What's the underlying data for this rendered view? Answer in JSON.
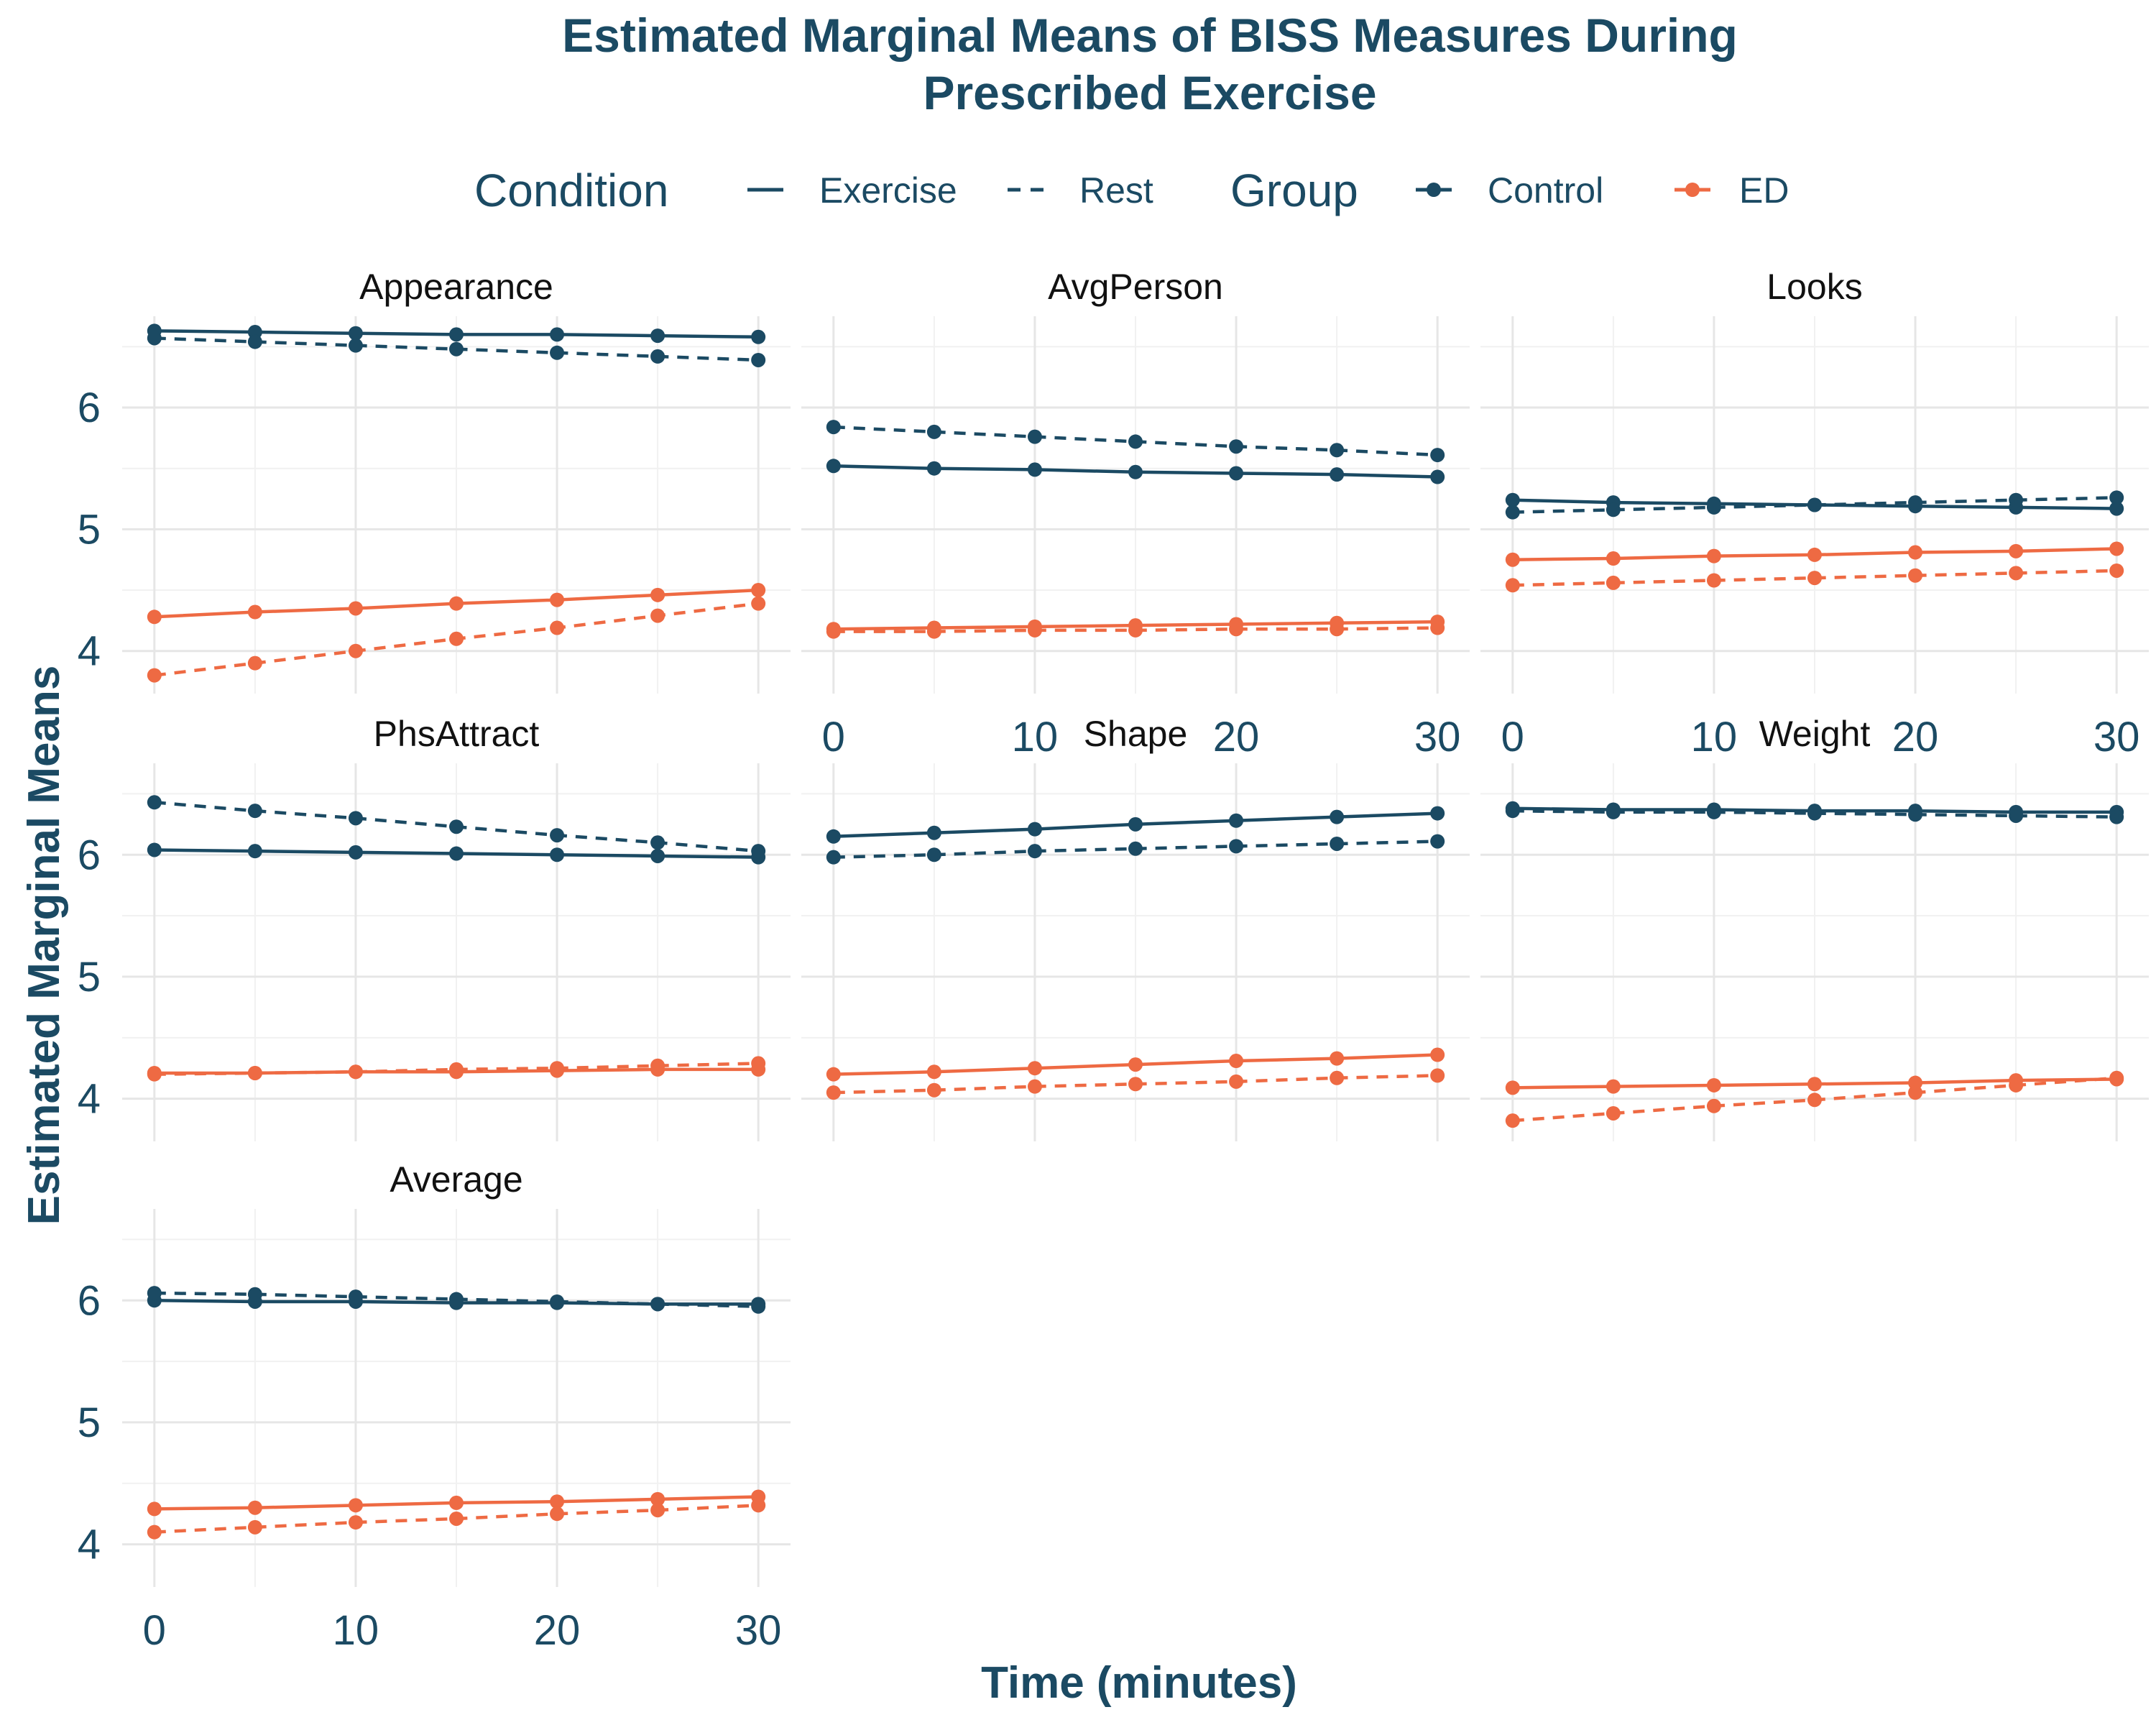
{
  "title_line1": "Estimated Marginal Means of BISS Measures During",
  "title_line2": "Prescribed Exercise",
  "legend": {
    "condition_title": "Condition",
    "condition_exercise": "Exercise",
    "condition_rest": "Rest",
    "group_title": "Group",
    "group_control": "Control",
    "group_ed": "ED"
  },
  "colors": {
    "control": "#1b4a63",
    "ed": "#ee6a43",
    "text": "#1b4a63"
  },
  "chart_data": {
    "type": "line",
    "title": "Estimated Marginal Means of BISS Measures During Prescribed Exercise",
    "xlabel": "Time (minutes)",
    "ylabel": "Estimated Marginal Means",
    "x": [
      0,
      5,
      10,
      15,
      20,
      25,
      30
    ],
    "x_ticks": [
      "0",
      "10",
      "20",
      "30"
    ],
    "y_ticks": [
      "4",
      "5",
      "6"
    ],
    "ylim": [
      3.65,
      6.75
    ],
    "grid": true,
    "legend_position": "top",
    "panels": [
      {
        "name": "Appearance",
        "series": [
          {
            "group": "Control",
            "condition": "Exercise",
            "values": [
              6.63,
              6.62,
              6.61,
              6.6,
              6.6,
              6.59,
              6.58
            ]
          },
          {
            "group": "Control",
            "condition": "Rest",
            "values": [
              6.57,
              6.54,
              6.51,
              6.48,
              6.45,
              6.42,
              6.39
            ]
          },
          {
            "group": "ED",
            "condition": "Exercise",
            "values": [
              4.28,
              4.32,
              4.35,
              4.39,
              4.42,
              4.46,
              4.5
            ]
          },
          {
            "group": "ED",
            "condition": "Rest",
            "values": [
              3.8,
              3.9,
              4.0,
              4.1,
              4.19,
              4.29,
              4.39
            ]
          }
        ]
      },
      {
        "name": "AvgPerson",
        "series": [
          {
            "group": "Control",
            "condition": "Exercise",
            "values": [
              5.52,
              5.5,
              5.49,
              5.47,
              5.46,
              5.45,
              5.43
            ]
          },
          {
            "group": "Control",
            "condition": "Rest",
            "values": [
              5.84,
              5.8,
              5.76,
              5.72,
              5.68,
              5.65,
              5.61
            ]
          },
          {
            "group": "ED",
            "condition": "Exercise",
            "values": [
              4.18,
              4.19,
              4.2,
              4.21,
              4.22,
              4.23,
              4.24
            ]
          },
          {
            "group": "ED",
            "condition": "Rest",
            "values": [
              4.16,
              4.16,
              4.17,
              4.17,
              4.18,
              4.18,
              4.19
            ]
          }
        ]
      },
      {
        "name": "Looks",
        "series": [
          {
            "group": "Control",
            "condition": "Exercise",
            "values": [
              5.24,
              5.22,
              5.21,
              5.2,
              5.19,
              5.18,
              5.17
            ]
          },
          {
            "group": "Control",
            "condition": "Rest",
            "values": [
              5.14,
              5.16,
              5.18,
              5.2,
              5.22,
              5.24,
              5.26
            ]
          },
          {
            "group": "ED",
            "condition": "Exercise",
            "values": [
              4.75,
              4.76,
              4.78,
              4.79,
              4.81,
              4.82,
              4.84
            ]
          },
          {
            "group": "ED",
            "condition": "Rest",
            "values": [
              4.54,
              4.56,
              4.58,
              4.6,
              4.62,
              4.64,
              4.66
            ]
          }
        ]
      },
      {
        "name": "PhsAttract",
        "series": [
          {
            "group": "Control",
            "condition": "Exercise",
            "values": [
              6.04,
              6.03,
              6.02,
              6.01,
              6.0,
              5.99,
              5.98
            ]
          },
          {
            "group": "Control",
            "condition": "Rest",
            "values": [
              6.43,
              6.36,
              6.3,
              6.23,
              6.16,
              6.1,
              6.03
            ]
          },
          {
            "group": "ED",
            "condition": "Exercise",
            "values": [
              4.21,
              4.21,
              4.22,
              4.22,
              4.23,
              4.24,
              4.24
            ]
          },
          {
            "group": "ED",
            "condition": "Rest",
            "values": [
              4.2,
              4.21,
              4.22,
              4.24,
              4.25,
              4.27,
              4.29
            ]
          }
        ]
      },
      {
        "name": "Shape",
        "series": [
          {
            "group": "Control",
            "condition": "Exercise",
            "values": [
              6.15,
              6.18,
              6.21,
              6.25,
              6.28,
              6.31,
              6.34
            ]
          },
          {
            "group": "Control",
            "condition": "Rest",
            "values": [
              5.98,
              6.0,
              6.03,
              6.05,
              6.07,
              6.09,
              6.11
            ]
          },
          {
            "group": "ED",
            "condition": "Exercise",
            "values": [
              4.2,
              4.22,
              4.25,
              4.28,
              4.31,
              4.33,
              4.36
            ]
          },
          {
            "group": "ED",
            "condition": "Rest",
            "values": [
              4.05,
              4.07,
              4.1,
              4.12,
              4.14,
              4.17,
              4.19
            ]
          }
        ]
      },
      {
        "name": "Weight",
        "series": [
          {
            "group": "Control",
            "condition": "Exercise",
            "values": [
              6.38,
              6.37,
              6.37,
              6.36,
              6.36,
              6.35,
              6.35
            ]
          },
          {
            "group": "Control",
            "condition": "Rest",
            "values": [
              6.36,
              6.35,
              6.35,
              6.34,
              6.33,
              6.32,
              6.31
            ]
          },
          {
            "group": "ED",
            "condition": "Exercise",
            "values": [
              4.09,
              4.1,
              4.11,
              4.12,
              4.13,
              4.15,
              4.16
            ]
          },
          {
            "group": "ED",
            "condition": "Rest",
            "values": [
              3.82,
              3.88,
              3.94,
              3.99,
              4.05,
              4.11,
              4.17
            ]
          }
        ]
      },
      {
        "name": "Average",
        "series": [
          {
            "group": "Control",
            "condition": "Exercise",
            "values": [
              6.0,
              5.99,
              5.99,
              5.98,
              5.98,
              5.97,
              5.97
            ]
          },
          {
            "group": "Control",
            "condition": "Rest",
            "values": [
              6.06,
              6.05,
              6.03,
              6.01,
              5.99,
              5.97,
              5.95
            ]
          },
          {
            "group": "ED",
            "condition": "Exercise",
            "values": [
              4.29,
              4.3,
              4.32,
              4.34,
              4.35,
              4.37,
              4.39
            ]
          },
          {
            "group": "ED",
            "condition": "Rest",
            "values": [
              4.1,
              4.14,
              4.18,
              4.21,
              4.25,
              4.28,
              4.32
            ]
          }
        ]
      }
    ]
  }
}
